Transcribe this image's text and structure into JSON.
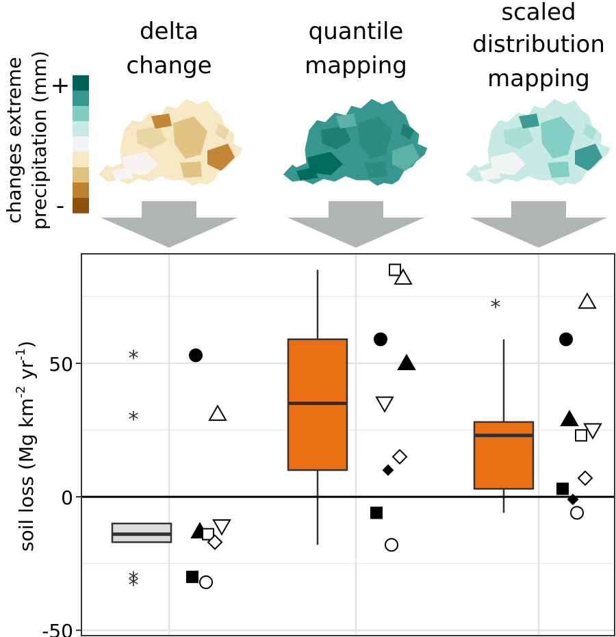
{
  "maps": {
    "columns": [
      {
        "title_lines": [
          "delta",
          "change"
        ]
      },
      {
        "title_lines": [
          "quantile",
          "mapping"
        ]
      },
      {
        "title_lines": [
          "scaled",
          "distribution",
          "mapping"
        ]
      }
    ],
    "legend_title_lines": [
      "changes extreme",
      "precipitation (mm)"
    ],
    "legend_plus": "+",
    "legend_minus": "-",
    "legend_colors": [
      "#006156",
      "#35978f",
      "#80cdc1",
      "#c7eae5",
      "#f5f5f5",
      "#f6e8c3",
      "#dfc27d",
      "#bf812d",
      "#8c510a"
    ],
    "arrow_color": "#b1b5b1",
    "map_palettes": [
      [
        "#f6e8c3",
        "#dfc27d",
        "#f5f5f5",
        "#bf812d",
        "#e9d5a3"
      ],
      [
        "#35978f",
        "#2e8a80",
        "#00695c",
        "#5fb3a8",
        "#1f7d72"
      ],
      [
        "#c7eae5",
        "#80cdc1",
        "#f5f5f5",
        "#35978f",
        "#a8ddd4"
      ]
    ]
  },
  "chart_data": {
    "type": "box",
    "ylabel": "soil loss (Mg km-2 yr-1)",
    "ylabel_parts": {
      "a": "soil loss (Mg km",
      "sup1": "-2",
      "b": " yr",
      "sup2": "-1",
      "c": ")"
    },
    "ylim": [
      -52,
      91
    ],
    "yticks": [
      50,
      0,
      -50
    ],
    "ytick_labels": [
      "50",
      "0",
      "-50"
    ],
    "grid": true,
    "zero_line": true,
    "box_colors": [
      "#dcdcdc",
      "#ec7014",
      "#ec7014"
    ],
    "groups": [
      {
        "box": {
          "whisker_low": -17,
          "q1": -17,
          "median": -14,
          "q3": -10,
          "whisker_high": -10
        },
        "outliers": [
          53,
          30,
          -30,
          -32
        ],
        "models": [
          {
            "shape": "filled-circle",
            "value": 53
          },
          {
            "shape": "open-triangle-up",
            "value": 31
          },
          {
            "shape": "open-triangle-down",
            "value": -11
          },
          {
            "shape": "filled-triangle-up",
            "value": -13
          },
          {
            "shape": "open-square",
            "value": -14
          },
          {
            "shape": "open-diamond",
            "value": -17
          },
          {
            "shape": "filled-square",
            "value": -30
          },
          {
            "shape": "open-circle",
            "value": -32
          }
        ]
      },
      {
        "box": {
          "whisker_low": -18,
          "q1": 10,
          "median": 35,
          "q3": 59,
          "whisker_high": 85
        },
        "outliers": [],
        "models": [
          {
            "shape": "open-square",
            "value": 85
          },
          {
            "shape": "open-triangle-up",
            "value": 82
          },
          {
            "shape": "filled-circle",
            "value": 59
          },
          {
            "shape": "filled-triangle-up",
            "value": 50
          },
          {
            "shape": "open-triangle-down",
            "value": 35
          },
          {
            "shape": "open-diamond",
            "value": 15
          },
          {
            "shape": "filled-diamond",
            "value": 10
          },
          {
            "shape": "filled-square",
            "value": -6
          },
          {
            "shape": "open-circle",
            "value": -18
          }
        ]
      },
      {
        "box": {
          "whisker_low": -6,
          "q1": 3,
          "median": 23,
          "q3": 28,
          "whisker_high": 59
        },
        "outliers": [
          72
        ],
        "models": [
          {
            "shape": "open-triangle-up",
            "value": 73
          },
          {
            "shape": "filled-circle",
            "value": 59
          },
          {
            "shape": "filled-triangle-up",
            "value": 29
          },
          {
            "shape": "open-triangle-down",
            "value": 25
          },
          {
            "shape": "open-square",
            "value": 23
          },
          {
            "shape": "open-diamond",
            "value": 7
          },
          {
            "shape": "filled-square",
            "value": 3
          },
          {
            "shape": "filled-diamond",
            "value": -1
          },
          {
            "shape": "open-circle",
            "value": -6
          }
        ]
      }
    ]
  }
}
